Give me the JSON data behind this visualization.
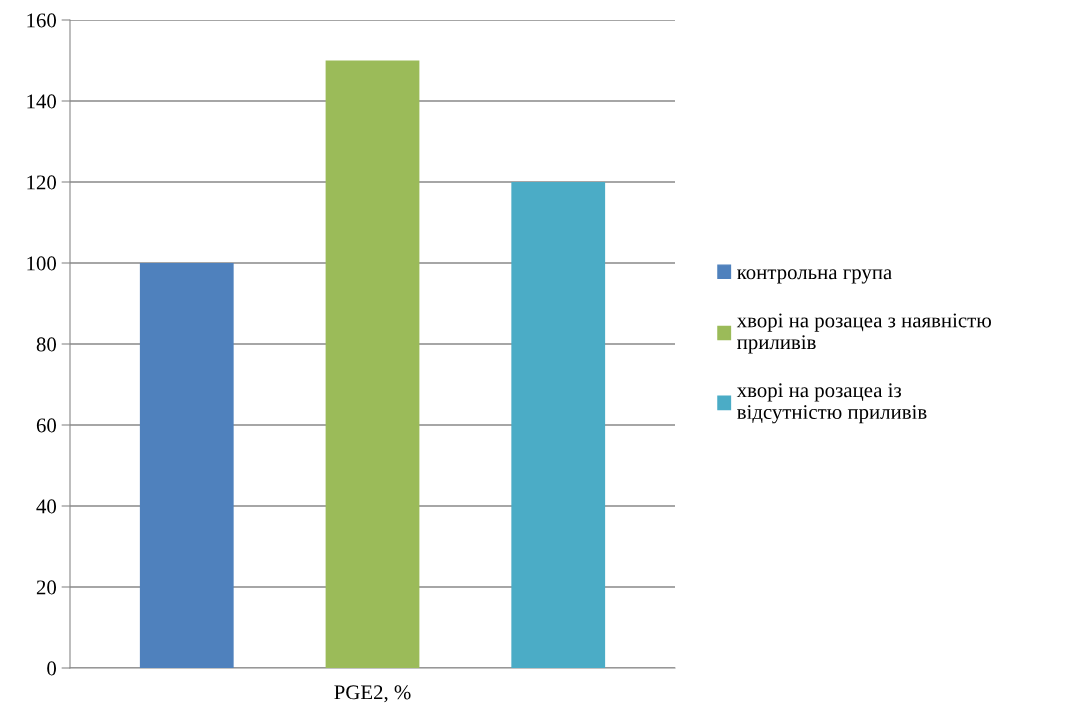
{
  "chart_data": {
    "type": "bar",
    "categories": [
      "PGE2, %"
    ],
    "series": [
      {
        "name": "контрольна група",
        "color": "#4f81bd",
        "values": [
          100
        ]
      },
      {
        "name": "хворі на розацеа з наявністю приливів",
        "color": "#9bbb59",
        "values": [
          150
        ]
      },
      {
        "name": "хворі на розацеа із відсутністю приливів",
        "color": "#4bacc6",
        "values": [
          120
        ]
      }
    ],
    "ylim": [
      0,
      160
    ],
    "yticks": [
      0,
      20,
      40,
      60,
      80,
      100,
      120,
      140,
      160
    ],
    "grid": "y",
    "legend": "right"
  }
}
